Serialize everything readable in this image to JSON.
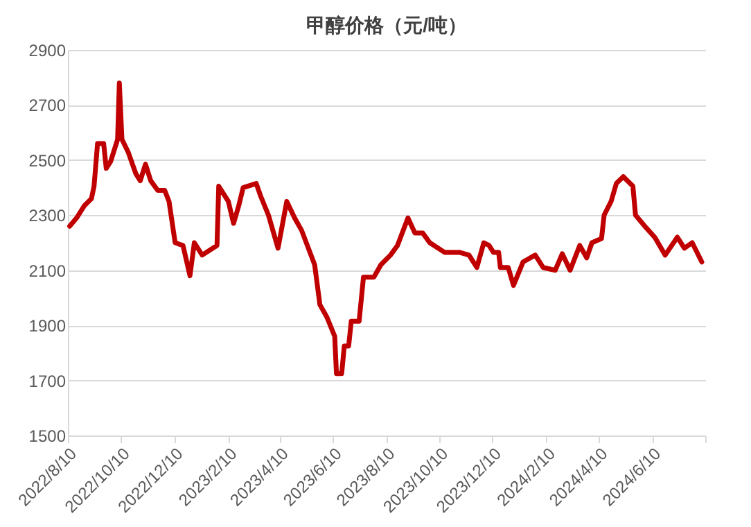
{
  "chart_data": {
    "type": "line",
    "title": "甲醇价格（元/吨）",
    "x": [
      "2022-08-12",
      "2022-08-20",
      "2022-08-29",
      "2022-09-06",
      "2022-09-09",
      "2022-09-13",
      "2022-09-20",
      "2022-09-23",
      "2022-09-28",
      "2022-10-06",
      "2022-10-08",
      "2022-10-11",
      "2022-10-18",
      "2022-10-27",
      "2022-11-01",
      "2022-11-07",
      "2022-11-13",
      "2022-11-21",
      "2022-11-29",
      "2022-12-04",
      "2022-12-11",
      "2022-12-20",
      "2022-12-28",
      "2023-01-02",
      "2023-01-11",
      "2023-01-28",
      "2023-01-30",
      "2023-02-10",
      "2023-02-16",
      "2023-02-22",
      "2023-02-27",
      "2023-03-14",
      "2023-03-19",
      "2023-03-28",
      "2023-04-08",
      "2023-04-18",
      "2023-04-27",
      "2023-05-05",
      "2023-05-20",
      "2023-05-26",
      "2023-06-03",
      "2023-06-12",
      "2023-06-14",
      "2023-06-20",
      "2023-06-23",
      "2023-06-28",
      "2023-07-01",
      "2023-07-10",
      "2023-07-15",
      "2023-07-27",
      "2023-08-04",
      "2023-08-15",
      "2023-08-23",
      "2023-09-04",
      "2023-09-12",
      "2023-09-21",
      "2023-09-29",
      "2023-10-16",
      "2023-11-02",
      "2023-11-13",
      "2023-11-22",
      "2023-11-30",
      "2023-12-06",
      "2023-12-11",
      "2023-12-17",
      "2023-12-19",
      "2023-12-28",
      "2024-01-03",
      "2024-01-14",
      "2024-01-28",
      "2024-02-06",
      "2024-02-20",
      "2024-02-28",
      "2024-03-08",
      "2024-03-19",
      "2024-03-27",
      "2024-04-02",
      "2024-04-13",
      "2024-04-16",
      "2024-04-24",
      "2024-04-30",
      "2024-05-08",
      "2024-05-19",
      "2024-05-22",
      "2024-06-03",
      "2024-06-13",
      "2024-06-25",
      "2024-07-09",
      "2024-07-17",
      "2024-07-26",
      "2024-08-06"
    ],
    "series": [
      {
        "color": "#c00000",
        "values": [
          2260,
          2290,
          2335,
          2360,
          2405,
          2560,
          2560,
          2470,
          2495,
          2575,
          2780,
          2575,
          2530,
          2450,
          2425,
          2485,
          2425,
          2390,
          2390,
          2350,
          2200,
          2190,
          2080,
          2200,
          2155,
          2190,
          2405,
          2350,
          2270,
          2335,
          2400,
          2415,
          2370,
          2300,
          2180,
          2350,
          2290,
          2245,
          2120,
          1975,
          1930,
          1860,
          1725,
          1725,
          1825,
          1825,
          1915,
          1915,
          2075,
          2075,
          2120,
          2155,
          2190,
          2290,
          2235,
          2235,
          2200,
          2165,
          2165,
          2155,
          2110,
          2200,
          2190,
          2165,
          2165,
          2110,
          2110,
          2045,
          2130,
          2155,
          2110,
          2100,
          2160,
          2100,
          2190,
          2145,
          2200,
          2215,
          2300,
          2350,
          2415,
          2440,
          2405,
          2300,
          2255,
          2220,
          2155,
          2220,
          2180,
          2200,
          2130
        ]
      }
    ],
    "xlim": [
      "2022-08-10",
      "2024-08-10"
    ],
    "xticks": [
      {
        "value": "2022-08-10",
        "label": "2022/8/10"
      },
      {
        "value": "2022-10-10",
        "label": "2022/10/10"
      },
      {
        "value": "2022-12-10",
        "label": "2022/12/10"
      },
      {
        "value": "2023-02-10",
        "label": "2023/2/10"
      },
      {
        "value": "2023-04-10",
        "label": "2023/4/10"
      },
      {
        "value": "2023-06-10",
        "label": "2023/6/10"
      },
      {
        "value": "2023-08-10",
        "label": "2023/8/10"
      },
      {
        "value": "2023-10-10",
        "label": "2023/10/10"
      },
      {
        "value": "2023-12-10",
        "label": "2023/12/10"
      },
      {
        "value": "2024-02-10",
        "label": "2024/2/10"
      },
      {
        "value": "2024-04-10",
        "label": "2024/4/10"
      },
      {
        "value": "2024-06-10",
        "label": "2024/6/10"
      },
      {
        "value": "2024-08-10",
        "label": null
      }
    ],
    "ylim": [
      1500,
      2900
    ],
    "yticks": [
      1500,
      1700,
      1900,
      2100,
      2300,
      2500,
      2700,
      2900
    ],
    "grid": "y",
    "legend": false,
    "line_style": "solid",
    "marker": "none"
  }
}
